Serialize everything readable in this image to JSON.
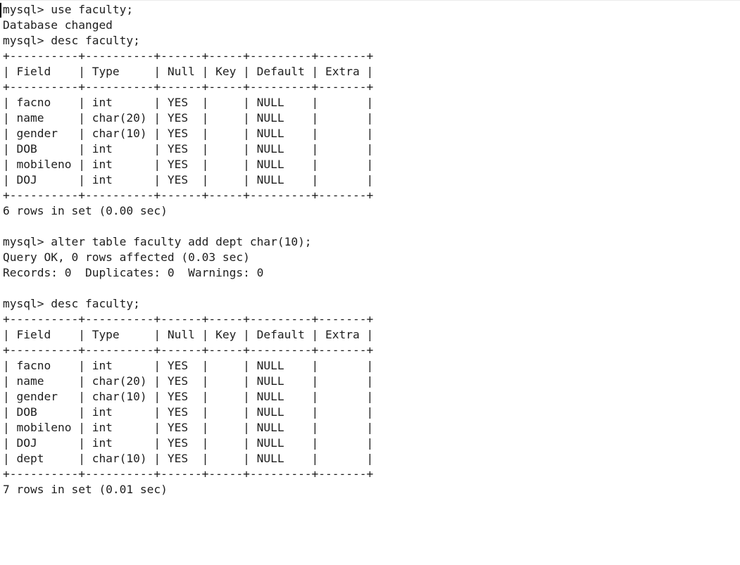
{
  "page": {
    "background": "#ffffff",
    "text_color": "#1e1e1e",
    "top_border_color": "#ebebeb",
    "caret_color": "#000000"
  },
  "terminal": {
    "prompt": "mysql>",
    "blocks": [
      {
        "type": "command",
        "command": "use faculty;"
      },
      {
        "type": "output",
        "lines": [
          "Database changed"
        ]
      },
      {
        "type": "command",
        "command": "desc faculty;"
      },
      {
        "type": "table",
        "headers": [
          "Field",
          "Type",
          "Null",
          "Key",
          "Default",
          "Extra"
        ],
        "rows": [
          [
            "facno",
            "int",
            "YES",
            "",
            "NULL",
            ""
          ],
          [
            "name",
            "char(20)",
            "YES",
            "",
            "NULL",
            ""
          ],
          [
            "gender",
            "char(10)",
            "YES",
            "",
            "NULL",
            ""
          ],
          [
            "DOB",
            "int",
            "YES",
            "",
            "NULL",
            ""
          ],
          [
            "mobileno",
            "int",
            "YES",
            "",
            "NULL",
            ""
          ],
          [
            "DOJ",
            "int",
            "YES",
            "",
            "NULL",
            ""
          ]
        ],
        "summary": "6 rows in set (0.00 sec)"
      },
      {
        "type": "blank"
      },
      {
        "type": "command",
        "command": "alter table faculty add dept char(10);"
      },
      {
        "type": "output",
        "lines": [
          "Query OK, 0 rows affected (0.03 sec)",
          "Records: 0  Duplicates: 0  Warnings: 0"
        ]
      },
      {
        "type": "blank"
      },
      {
        "type": "command",
        "command": "desc faculty;"
      },
      {
        "type": "table",
        "headers": [
          "Field",
          "Type",
          "Null",
          "Key",
          "Default",
          "Extra"
        ],
        "rows": [
          [
            "facno",
            "int",
            "YES",
            "",
            "NULL",
            ""
          ],
          [
            "name",
            "char(20)",
            "YES",
            "",
            "NULL",
            ""
          ],
          [
            "gender",
            "char(10)",
            "YES",
            "",
            "NULL",
            ""
          ],
          [
            "DOB",
            "int",
            "YES",
            "",
            "NULL",
            ""
          ],
          [
            "mobileno",
            "int",
            "YES",
            "",
            "NULL",
            ""
          ],
          [
            "DOJ",
            "int",
            "YES",
            "",
            "NULL",
            ""
          ],
          [
            "dept",
            "char(10)",
            "YES",
            "",
            "NULL",
            ""
          ]
        ],
        "summary": "7 rows in set (0.01 sec)"
      }
    ]
  }
}
